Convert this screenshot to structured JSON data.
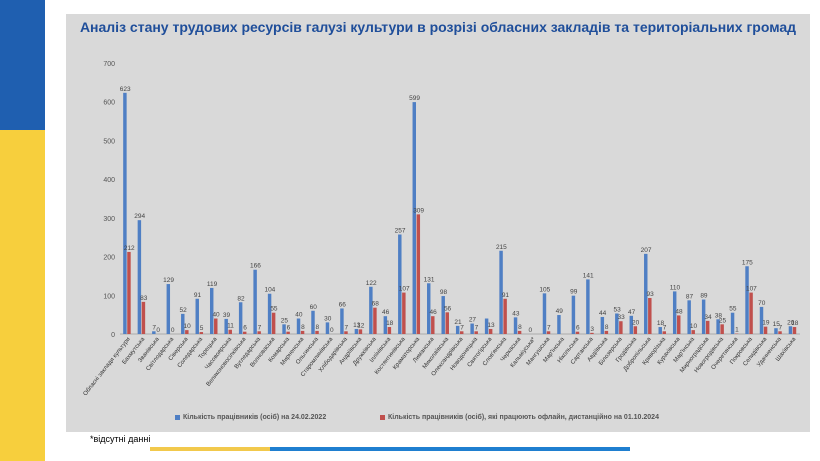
{
  "title": "Аналіз стану трудових ресурсів галузі культури в  розрізі обласних закладів та територіальних громад",
  "footnote": "*відсутні данні",
  "colors": {
    "series1": "#4f7fc4",
    "series2": "#c0504d",
    "panel": "#d9d9d9",
    "title": "#1f4e9a"
  },
  "chart_data": {
    "type": "bar",
    "ylim": [
      0,
      700
    ],
    "yticks": [
      0,
      100,
      200,
      300,
      400,
      500,
      600,
      700
    ],
    "grid": false,
    "legend_position": "bottom",
    "categories": [
      "Обласні заклади культури",
      "Бахмутська",
      "Званівська",
      "Світлодарська",
      "Сіверська",
      "Соледарська",
      "Торецька",
      "Часовоярська",
      "Великоновосілківська",
      "Вугледарська",
      "Волноваська",
      "Комарська",
      "Мирненська",
      "Ольгинська",
      "Старомлинівська",
      "Хлібодарівська",
      "Андріївська",
      "Дружківська",
      "Іллінівська",
      "Костянтинівська",
      "Краматорська",
      "Лиманська",
      "Миколаївська",
      "Олександрівська",
      "Новодонецька",
      "Святогірська",
      "Слов'янська",
      "Черкаська",
      "Кальміуська*",
      "Мангушська",
      "Мар'їнська",
      "Нікольська",
      "Сартанська",
      "Авдіївська",
      "Білозерська",
      "Гродівська",
      "Добропільська",
      "Криворізька",
      "Курахівська",
      "Мар'їнська",
      "Мирноградська",
      "Новогродівська",
      "Очеретинська",
      "Покровська",
      "Селидівська",
      "Удачненська",
      "Шахівська"
    ],
    "series": [
      {
        "name": "Кількість працівників (осіб) на 24.02.2022",
        "values": [
          623,
          294,
          7,
          129,
          52,
          91,
          119,
          39,
          82,
          166,
          104,
          25,
          40,
          60,
          30,
          66,
          13,
          122,
          46,
          257,
          599,
          131,
          98,
          21,
          27,
          40,
          215,
          43,
          0,
          105,
          49,
          99,
          141,
          44,
          53,
          47,
          207,
          18,
          110,
          87,
          89,
          38,
          55,
          175,
          70,
          15,
          20
        ],
        "labels": [
          "623",
          "294",
          "7",
          "129",
          "52",
          "91",
          "119",
          "39",
          "82",
          "166",
          "104",
          "25",
          "40",
          "60",
          "30",
          "66",
          "13",
          "122",
          "46",
          "257",
          "599",
          "131",
          "98",
          "21",
          "27",
          "",
          "215",
          "43",
          "0",
          "105",
          "49",
          "99",
          "141",
          "44",
          "53",
          "47",
          "207",
          "18",
          "110",
          "87",
          "89",
          "38",
          "55",
          "175",
          "70",
          "15",
          "20"
        ]
      },
      {
        "name": "Кількість працівників (осіб), які працюють офлайн, дистанційно на 01.10.2024",
        "values": [
          212,
          83,
          0,
          0,
          10,
          5,
          40,
          11,
          6,
          7,
          55,
          6,
          8,
          8,
          0,
          7,
          12,
          68,
          18,
          107,
          309,
          46,
          56,
          7,
          7,
          13,
          91,
          8,
          0,
          7,
          0,
          6,
          3,
          8,
          33,
          20,
          93,
          7,
          48,
          10,
          34,
          25,
          1,
          107,
          19,
          7,
          18
        ],
        "labels": [
          "212",
          "83",
          "0",
          "0",
          "10",
          "5",
          "40",
          "11",
          "6",
          "7",
          "55",
          "6",
          "8",
          "8",
          "0",
          "7",
          "12",
          "68",
          "18",
          "107",
          "309",
          "46",
          "56",
          "7",
          "7",
          "13",
          "91",
          "8",
          "",
          "7",
          "",
          "6",
          "3",
          "8",
          "33",
          "20",
          "93",
          "7",
          "48",
          "10",
          "34",
          "25",
          "1",
          "107",
          "19",
          "7",
          "18"
        ]
      }
    ]
  }
}
